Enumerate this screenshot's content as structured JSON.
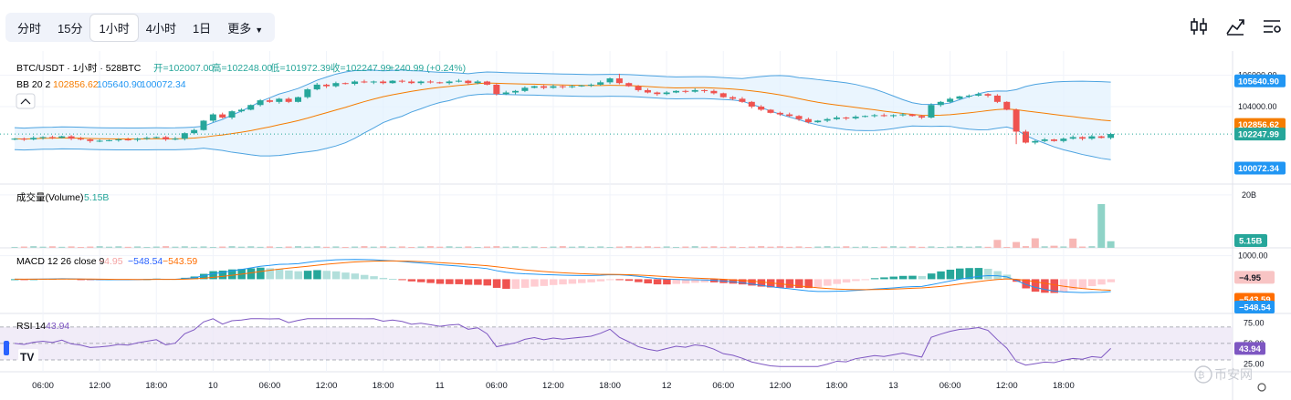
{
  "toolbar": {
    "timeframes": [
      "分时",
      "15分",
      "1小时",
      "4小时",
      "1日"
    ],
    "active_index": 2,
    "more_label": "更多"
  },
  "top_icons": [
    "indicators-icon",
    "compare-icon",
    "settings-icon"
  ],
  "colors": {
    "up": "#26a69a",
    "down": "#ef5350",
    "bb_basis": "#f57c00",
    "bb_band": "#4da3e0",
    "bb_fill": "#e3f2fd",
    "macd": "#2962ff",
    "signal": "#ff6d00",
    "rsi": "#7e57c2",
    "rsi_fill": "#ede7f6"
  },
  "chart_data": [
    {
      "type": "candlestick",
      "legend": {
        "symbol": "BTC/USDT · 1小时 · 528BTC",
        "open_label": "开=102007.00",
        "high_label": "高=102248.00",
        "low_label": "低=101972.39",
        "close_label": "收=102247.99",
        "change_label": "+240.99 (+0.24%)"
      },
      "bb_legend": {
        "name": "BB 20 2",
        "basis": "102856.62",
        "upper": "105640.90",
        "lower": "100072.34"
      },
      "y_ticks": [
        "106000.00",
        "104000.00"
      ],
      "y_range": [
        99400,
        107200
      ],
      "price_tags": [
        {
          "value": 105640.9,
          "text": "105640.90",
          "kind": "upper"
        },
        {
          "value": 102856.62,
          "text": "102856.62",
          "kind": "basis"
        },
        {
          "value": 102247.99,
          "text": "102247.99",
          "kind": "close"
        },
        {
          "value": 100072.34,
          "text": "100072.34",
          "kind": "lower"
        }
      ],
      "last_close": 102247.99,
      "x_labels": [
        "06:00",
        "12:00",
        "18:00",
        "10",
        "06:00",
        "12:00",
        "18:00",
        "11",
        "06:00",
        "12:00",
        "18:00",
        "12",
        "06:00",
        "12:00",
        "18:00",
        "13",
        "06:00",
        "12:00",
        "18:00"
      ],
      "closes": [
        101950,
        101900,
        102000,
        102050,
        102000,
        102100,
        101950,
        101900,
        101800,
        101820,
        101850,
        101900,
        101880,
        101950,
        102000,
        102050,
        101900,
        101950,
        102300,
        102500,
        103100,
        103500,
        103300,
        103700,
        103800,
        104100,
        104400,
        104300,
        104500,
        104300,
        104600,
        105100,
        105400,
        105300,
        105500,
        105450,
        105600,
        105550,
        105600,
        105500,
        105650,
        105600,
        105500,
        105600,
        105550,
        105500,
        105600,
        105650,
        105500,
        105600,
        105400,
        104800,
        104900,
        105000,
        105200,
        105300,
        105200,
        105300,
        105250,
        105300,
        105350,
        105400,
        105550,
        105800,
        105500,
        105300,
        105050,
        104900,
        104800,
        104900,
        105000,
        104950,
        105050,
        105000,
        104850,
        104600,
        104500,
        104300,
        104000,
        103800,
        103600,
        103500,
        103400,
        103200,
        103000,
        103100,
        103200,
        103300,
        103250,
        103350,
        103400,
        103450,
        103400,
        103450,
        103500,
        103400,
        103300,
        104100,
        104300,
        104500,
        104650,
        104700,
        104800,
        104700,
        104300,
        103800,
        102400,
        101700,
        101800,
        101900,
        101800,
        101950,
        102050,
        101950,
        102100,
        102000,
        102247.99
      ]
    },
    {
      "type": "bar",
      "title": "成交量(Volume)",
      "last_value_label": "5.15B",
      "y_ticks": [
        "20B"
      ],
      "tag": "5.15B",
      "spike_values_b": [
        3.0,
        2.2,
        3.6,
        0.8,
        3.5,
        16.5,
        2.5
      ]
    },
    {
      "type": "line",
      "title": "MACD 12 26 close 9",
      "values": {
        "hist": "−4.95",
        "macd": "−548.54",
        "signal": "−543.59"
      },
      "y_ticks": [
        "1000.00"
      ],
      "tags": [
        {
          "text": "−4.95",
          "kind": "hist"
        },
        {
          "text": "−543.59",
          "kind": "signal"
        },
        {
          "text": "−548.54",
          "kind": "macd"
        }
      ]
    },
    {
      "type": "line",
      "title": "RSI 14",
      "value": "43.94",
      "y_ticks": [
        "75.00",
        "50.00",
        "25.00"
      ],
      "tag": "43.94",
      "last_value": 43.94
    }
  ],
  "watermark": "币安网"
}
